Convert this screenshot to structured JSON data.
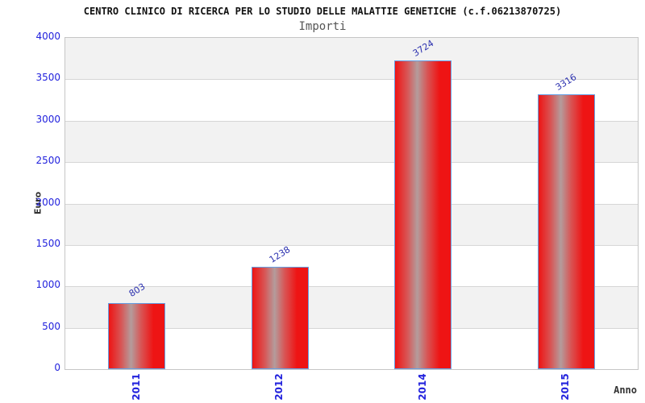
{
  "chart_data": {
    "type": "bar",
    "title": "CENTRO CLINICO DI RICERCA PER LO STUDIO DELLE MALATTIE GENETICHE (c.f.06213870725)",
    "subtitle": "Importi",
    "categories": [
      "2011",
      "2012",
      "2014",
      "2015"
    ],
    "values": [
      803,
      1238,
      3724,
      3316
    ],
    "xlabel": "Anno",
    "ylabel": "Euro",
    "ylim": [
      0,
      4000
    ],
    "ytick_step": 500,
    "yticks": [
      0,
      500,
      1000,
      1500,
      2000,
      2500,
      3000,
      3500,
      4000
    ],
    "grid": true,
    "legend": "none",
    "colors": {
      "bar_red": "#ee1414",
      "bar_red_soft": "#d85555",
      "bar_highlight": "#b49c9c",
      "bar_border": "#64a0e6",
      "band_gray": "#f2f2f2",
      "band_white": "#ffffff",
      "grid_line": "#d6d6d6",
      "tick_text": "#2222dd",
      "value_text": "#2a2fae",
      "axis_title_text": "#333333",
      "title_text": "#111111",
      "subtitle_text": "#555555"
    }
  }
}
